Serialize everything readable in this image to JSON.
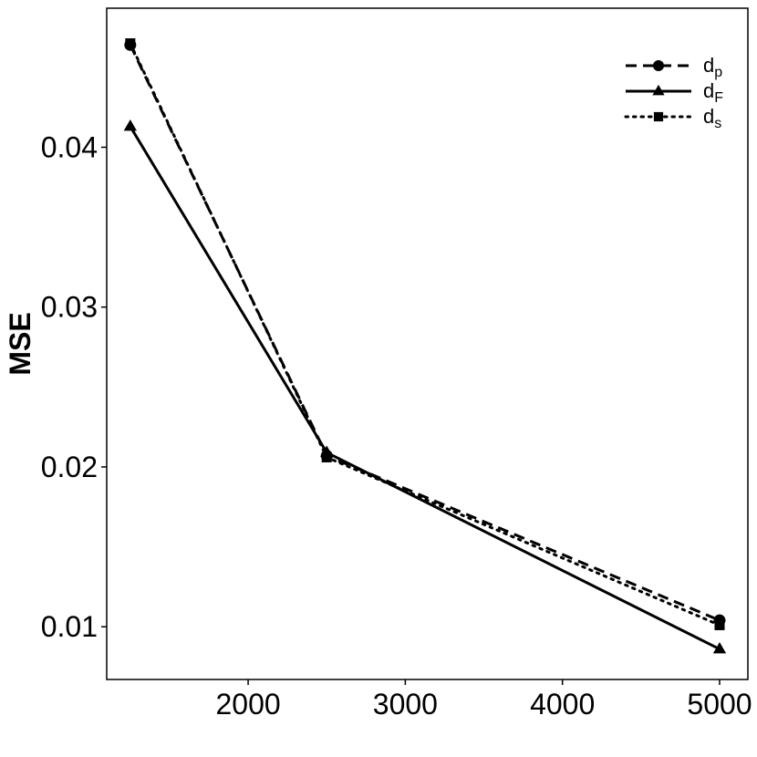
{
  "chart_data": {
    "type": "line",
    "title": "",
    "xlabel": "",
    "ylabel": "MSE",
    "xlim": [
      1100,
      5180
    ],
    "ylim": [
      0.0067,
      0.0487
    ],
    "x_ticks": [
      2000,
      3000,
      4000,
      5000
    ],
    "y_ticks": [
      0.01,
      0.02,
      0.03,
      0.04
    ],
    "x_tick_labels": [
      "2000",
      "3000",
      "4000",
      "5000"
    ],
    "y_tick_labels": [
      "0.01",
      "0.02",
      "0.03",
      "0.04"
    ],
    "grid": false,
    "legend_position": "top-right",
    "series": [
      {
        "name": "d",
        "subscript": "p",
        "line_style": "dashed",
        "marker": "circle",
        "color": "#000000",
        "x": [
          1250,
          2500,
          5000
        ],
        "y": [
          0.0464,
          0.0207,
          0.0104
        ]
      },
      {
        "name": "d",
        "subscript": "F",
        "line_style": "solid",
        "marker": "triangle",
        "color": "#000000",
        "x": [
          1250,
          2500,
          5000
        ],
        "y": [
          0.0413,
          0.0209,
          0.0086
        ]
      },
      {
        "name": "d",
        "subscript": "s",
        "line_style": "dotted",
        "marker": "square",
        "color": "#000000",
        "x": [
          1250,
          2500,
          5000
        ],
        "y": [
          0.0465,
          0.0206,
          0.0101
        ]
      }
    ]
  }
}
